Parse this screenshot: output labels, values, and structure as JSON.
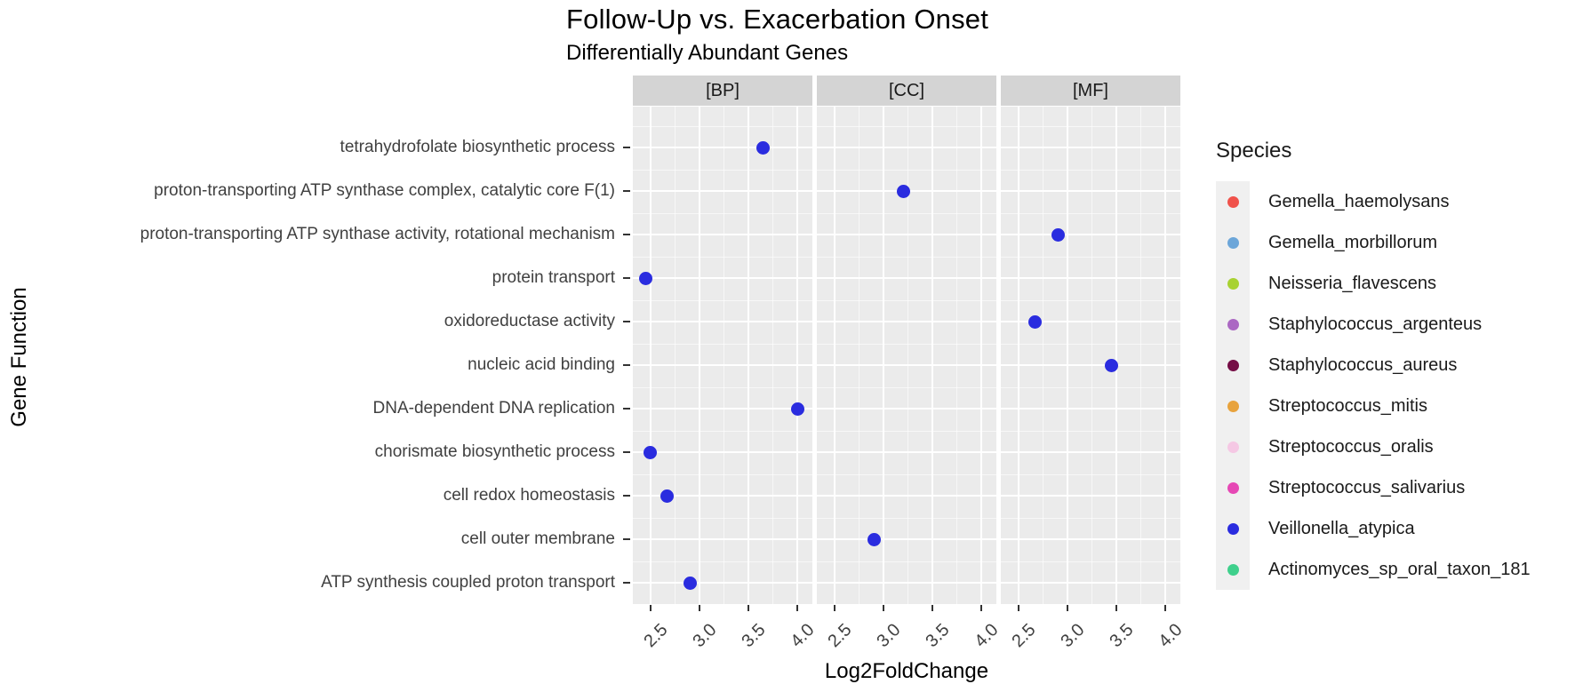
{
  "title": "Follow-Up vs. Exacerbation Onset",
  "subtitle": "Differentially Abundant Genes",
  "chart_data": {
    "type": "scatter",
    "facets": [
      "[BP]",
      "[CC]",
      "[MF]"
    ],
    "xlabel": "Log2FoldChange",
    "ylabel": "Gene Function",
    "x_ticks": [
      2.5,
      3.0,
      3.5,
      4.0
    ],
    "x_minor_ticks": [
      2.75,
      3.25,
      3.75
    ],
    "x_domain": [
      2.32,
      4.15
    ],
    "grid": "on",
    "legend_position": "right",
    "categories": [
      "tetrahydrofolate biosynthetic process",
      "proton-transporting ATP synthase complex, catalytic core F(1)",
      "proton-transporting ATP synthase activity, rotational mechanism",
      "protein transport",
      "oxidoreductase activity",
      "nucleic acid binding",
      "DNA-dependent DNA replication",
      "chorismate biosynthetic process",
      "cell redox homeostasis",
      "cell outer membrane",
      "ATP synthesis coupled proton transport"
    ],
    "points": [
      {
        "category": "tetrahydrofolate biosynthetic process",
        "facet": "[BP]",
        "x": 3.65,
        "species": "Veillonella_atypica"
      },
      {
        "category": "proton-transporting ATP synthase complex, catalytic core F(1)",
        "facet": "[CC]",
        "x": 3.2,
        "species": "Veillonella_atypica"
      },
      {
        "category": "proton-transporting ATP synthase activity, rotational mechanism",
        "facet": "[MF]",
        "x": 2.9,
        "species": "Veillonella_atypica"
      },
      {
        "category": "protein transport",
        "facet": "[BP]",
        "x": 2.45,
        "species": "Veillonella_atypica"
      },
      {
        "category": "oxidoreductase activity",
        "facet": "[MF]",
        "x": 2.67,
        "species": "Veillonella_atypica"
      },
      {
        "category": "nucleic acid binding",
        "facet": "[MF]",
        "x": 3.45,
        "species": "Veillonella_atypica"
      },
      {
        "category": "DNA-dependent DNA replication",
        "facet": "[BP]",
        "x": 4.0,
        "species": "Veillonella_atypica"
      },
      {
        "category": "chorismate biosynthetic process",
        "facet": "[BP]",
        "x": 2.5,
        "species": "Veillonella_atypica"
      },
      {
        "category": "cell redox homeostasis",
        "facet": "[BP]",
        "x": 2.67,
        "species": "Veillonella_atypica"
      },
      {
        "category": "cell outer membrane",
        "facet": "[CC]",
        "x": 2.9,
        "species": "Veillonella_atypica"
      },
      {
        "category": "ATP synthesis coupled proton transport",
        "facet": "[BP]",
        "x": 2.9,
        "species": "Veillonella_atypica"
      }
    ],
    "legend": {
      "title": "Species",
      "items": [
        {
          "label": "Gemella_haemolysans",
          "color": "#f0524b"
        },
        {
          "label": "Gemella_morbillorum",
          "color": "#6ca6d9"
        },
        {
          "label": "Neisseria_flavescens",
          "color": "#a8d232"
        },
        {
          "label": "Staphylococcus_argenteus",
          "color": "#ab68c3"
        },
        {
          "label": "Staphylococcus_aureus",
          "color": "#750d45"
        },
        {
          "label": "Streptococcus_mitis",
          "color": "#e8a33d"
        },
        {
          "label": "Streptococcus_oralis",
          "color": "#f5c8e4"
        },
        {
          "label": "Streptococcus_salivarius",
          "color": "#e648b5"
        },
        {
          "label": "Veillonella_atypica",
          "color": "#2a2cdf"
        },
        {
          "label": "Actinomyces_sp_oral_taxon_181",
          "color": "#3fd08c"
        }
      ]
    },
    "colors": {
      "panel_background": "#ebebeb",
      "strip_background": "#d4d4d4",
      "gridline": "#ffffff",
      "point": "#2a2cdf"
    }
  }
}
